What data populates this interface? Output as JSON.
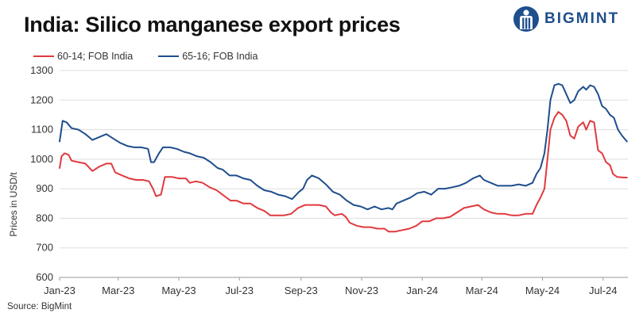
{
  "title": "India: Silico manganese export prices",
  "brand": {
    "name": "BIGMINT",
    "color": "#1f4e8c"
  },
  "source": "Source: BigMint",
  "chart_data": {
    "type": "line",
    "title": "India: Silico manganese export prices",
    "xlabel": "",
    "ylabel": "Prices in USD/t",
    "ylim": [
      600,
      1300
    ],
    "yticks": [
      600,
      700,
      800,
      900,
      1000,
      1100,
      1200,
      1300
    ],
    "xlim": [
      "2023-01-01",
      "2024-07-26"
    ],
    "x_tick_labels": [
      {
        "date": "2023-01-01",
        "label": "Jan-23"
      },
      {
        "date": "2023-03-01",
        "label": "Mar-23"
      },
      {
        "date": "2023-05-01",
        "label": "May-23"
      },
      {
        "date": "2023-07-01",
        "label": "Jul-23"
      },
      {
        "date": "2023-09-01",
        "label": "Sep-23"
      },
      {
        "date": "2023-11-01",
        "label": "Nov-23"
      },
      {
        "date": "2024-01-01",
        "label": "Jan-24"
      },
      {
        "date": "2024-03-01",
        "label": "Mar-24"
      },
      {
        "date": "2024-05-01",
        "label": "May-24"
      },
      {
        "date": "2024-07-01",
        "label": "Jul-24"
      }
    ],
    "grid": true,
    "legend_position": "top-left",
    "series": [
      {
        "name": "60-14; FOB India",
        "color": "#e03a3e",
        "points": [
          [
            "2023-01-01",
            970
          ],
          [
            "2023-01-03",
            1010
          ],
          [
            "2023-01-06",
            1020
          ],
          [
            "2023-01-10",
            1015
          ],
          [
            "2023-01-13",
            995
          ],
          [
            "2023-01-20",
            990
          ],
          [
            "2023-01-27",
            985
          ],
          [
            "2023-02-03",
            960
          ],
          [
            "2023-02-10",
            975
          ],
          [
            "2023-02-17",
            985
          ],
          [
            "2023-02-22",
            985
          ],
          [
            "2023-02-26",
            955
          ],
          [
            "2023-03-05",
            945
          ],
          [
            "2023-03-12",
            935
          ],
          [
            "2023-03-19",
            930
          ],
          [
            "2023-03-26",
            930
          ],
          [
            "2023-04-01",
            925
          ],
          [
            "2023-04-05",
            900
          ],
          [
            "2023-04-08",
            875
          ],
          [
            "2023-04-13",
            880
          ],
          [
            "2023-04-17",
            940
          ],
          [
            "2023-04-24",
            940
          ],
          [
            "2023-05-01",
            935
          ],
          [
            "2023-05-08",
            935
          ],
          [
            "2023-05-12",
            920
          ],
          [
            "2023-05-18",
            925
          ],
          [
            "2023-05-25",
            920
          ],
          [
            "2023-06-01",
            905
          ],
          [
            "2023-06-08",
            895
          ],
          [
            "2023-06-12",
            885
          ],
          [
            "2023-06-16",
            875
          ],
          [
            "2023-06-22",
            860
          ],
          [
            "2023-06-28",
            860
          ],
          [
            "2023-07-05",
            850
          ],
          [
            "2023-07-12",
            850
          ],
          [
            "2023-07-19",
            835
          ],
          [
            "2023-07-26",
            825
          ],
          [
            "2023-08-01",
            810
          ],
          [
            "2023-08-08",
            810
          ],
          [
            "2023-08-15",
            810
          ],
          [
            "2023-08-22",
            815
          ],
          [
            "2023-08-29",
            835
          ],
          [
            "2023-09-05",
            845
          ],
          [
            "2023-09-12",
            845
          ],
          [
            "2023-09-19",
            845
          ],
          [
            "2023-09-26",
            840
          ],
          [
            "2023-10-01",
            820
          ],
          [
            "2023-10-05",
            810
          ],
          [
            "2023-10-12",
            815
          ],
          [
            "2023-10-16",
            805
          ],
          [
            "2023-10-20",
            785
          ],
          [
            "2023-10-27",
            775
          ],
          [
            "2023-11-03",
            770
          ],
          [
            "2023-11-10",
            770
          ],
          [
            "2023-11-17",
            765
          ],
          [
            "2023-11-24",
            765
          ],
          [
            "2023-11-28",
            755
          ],
          [
            "2023-12-05",
            755
          ],
          [
            "2023-12-12",
            760
          ],
          [
            "2023-12-19",
            765
          ],
          [
            "2023-12-26",
            775
          ],
          [
            "2024-01-01",
            790
          ],
          [
            "2024-01-08",
            790
          ],
          [
            "2024-01-15",
            800
          ],
          [
            "2024-01-22",
            800
          ],
          [
            "2024-01-29",
            805
          ],
          [
            "2024-02-05",
            820
          ],
          [
            "2024-02-12",
            835
          ],
          [
            "2024-02-19",
            840
          ],
          [
            "2024-02-26",
            845
          ],
          [
            "2024-03-03",
            830
          ],
          [
            "2024-03-10",
            820
          ],
          [
            "2024-03-17",
            815
          ],
          [
            "2024-03-24",
            815
          ],
          [
            "2024-03-31",
            810
          ],
          [
            "2024-04-07",
            810
          ],
          [
            "2024-04-14",
            815
          ],
          [
            "2024-04-21",
            815
          ],
          [
            "2024-04-25",
            845
          ],
          [
            "2024-04-29",
            870
          ],
          [
            "2024-05-03",
            900
          ],
          [
            "2024-05-06",
            1000
          ],
          [
            "2024-05-09",
            1100
          ],
          [
            "2024-05-13",
            1140
          ],
          [
            "2024-05-17",
            1160
          ],
          [
            "2024-05-21",
            1150
          ],
          [
            "2024-05-25",
            1130
          ],
          [
            "2024-05-29",
            1080
          ],
          [
            "2024-06-02",
            1070
          ],
          [
            "2024-06-06",
            1110
          ],
          [
            "2024-06-11",
            1125
          ],
          [
            "2024-06-14",
            1100
          ],
          [
            "2024-06-18",
            1130
          ],
          [
            "2024-06-22",
            1125
          ],
          [
            "2024-06-26",
            1030
          ],
          [
            "2024-06-30",
            1020
          ],
          [
            "2024-07-04",
            990
          ],
          [
            "2024-07-08",
            980
          ],
          [
            "2024-07-11",
            950
          ],
          [
            "2024-07-15",
            940
          ],
          [
            "2024-07-22",
            938
          ],
          [
            "2024-07-25",
            938
          ]
        ]
      },
      {
        "name": "65-16; FOB India",
        "color": "#1f4e8c",
        "points": [
          [
            "2023-01-01",
            1060
          ],
          [
            "2023-01-04",
            1130
          ],
          [
            "2023-01-08",
            1125
          ],
          [
            "2023-01-13",
            1105
          ],
          [
            "2023-01-20",
            1100
          ],
          [
            "2023-01-27",
            1085
          ],
          [
            "2023-02-03",
            1065
          ],
          [
            "2023-02-10",
            1075
          ],
          [
            "2023-02-17",
            1085
          ],
          [
            "2023-02-24",
            1070
          ],
          [
            "2023-03-03",
            1055
          ],
          [
            "2023-03-10",
            1045
          ],
          [
            "2023-03-17",
            1040
          ],
          [
            "2023-03-24",
            1040
          ],
          [
            "2023-03-31",
            1035
          ],
          [
            "2023-04-03",
            990
          ],
          [
            "2023-04-06",
            990
          ],
          [
            "2023-04-11",
            1020
          ],
          [
            "2023-04-15",
            1040
          ],
          [
            "2023-04-22",
            1040
          ],
          [
            "2023-04-29",
            1035
          ],
          [
            "2023-05-06",
            1025
          ],
          [
            "2023-05-12",
            1020
          ],
          [
            "2023-05-19",
            1010
          ],
          [
            "2023-05-26",
            1005
          ],
          [
            "2023-06-02",
            990
          ],
          [
            "2023-06-09",
            970
          ],
          [
            "2023-06-14",
            965
          ],
          [
            "2023-06-21",
            945
          ],
          [
            "2023-06-28",
            945
          ],
          [
            "2023-07-05",
            935
          ],
          [
            "2023-07-12",
            930
          ],
          [
            "2023-07-19",
            910
          ],
          [
            "2023-07-26",
            895
          ],
          [
            "2023-08-02",
            890
          ],
          [
            "2023-08-09",
            880
          ],
          [
            "2023-08-16",
            875
          ],
          [
            "2023-08-23",
            865
          ],
          [
            "2023-08-30",
            890
          ],
          [
            "2023-09-03",
            900
          ],
          [
            "2023-09-07",
            930
          ],
          [
            "2023-09-12",
            945
          ],
          [
            "2023-09-19",
            935
          ],
          [
            "2023-09-26",
            915
          ],
          [
            "2023-10-03",
            890
          ],
          [
            "2023-10-10",
            880
          ],
          [
            "2023-10-17",
            860
          ],
          [
            "2023-10-24",
            845
          ],
          [
            "2023-10-31",
            840
          ],
          [
            "2023-11-07",
            830
          ],
          [
            "2023-11-14",
            840
          ],
          [
            "2023-11-21",
            830
          ],
          [
            "2023-11-28",
            835
          ],
          [
            "2023-12-02",
            830
          ],
          [
            "2023-12-06",
            850
          ],
          [
            "2023-12-13",
            860
          ],
          [
            "2023-12-20",
            870
          ],
          [
            "2023-12-27",
            885
          ],
          [
            "2024-01-03",
            890
          ],
          [
            "2024-01-10",
            880
          ],
          [
            "2024-01-17",
            900
          ],
          [
            "2024-01-24",
            900
          ],
          [
            "2024-01-31",
            905
          ],
          [
            "2024-02-07",
            910
          ],
          [
            "2024-02-14",
            920
          ],
          [
            "2024-02-21",
            935
          ],
          [
            "2024-02-28",
            945
          ],
          [
            "2024-03-03",
            930
          ],
          [
            "2024-03-10",
            920
          ],
          [
            "2024-03-17",
            910
          ],
          [
            "2024-03-24",
            910
          ],
          [
            "2024-03-31",
            910
          ],
          [
            "2024-04-07",
            915
          ],
          [
            "2024-04-14",
            910
          ],
          [
            "2024-04-21",
            920
          ],
          [
            "2024-04-25",
            950
          ],
          [
            "2024-04-29",
            970
          ],
          [
            "2024-05-03",
            1020
          ],
          [
            "2024-05-06",
            1100
          ],
          [
            "2024-05-09",
            1200
          ],
          [
            "2024-05-13",
            1250
          ],
          [
            "2024-05-17",
            1255
          ],
          [
            "2024-05-21",
            1250
          ],
          [
            "2024-05-25",
            1220
          ],
          [
            "2024-05-29",
            1190
          ],
          [
            "2024-06-02",
            1200
          ],
          [
            "2024-06-06",
            1230
          ],
          [
            "2024-06-11",
            1245
          ],
          [
            "2024-06-14",
            1235
          ],
          [
            "2024-06-18",
            1250
          ],
          [
            "2024-06-22",
            1245
          ],
          [
            "2024-06-26",
            1220
          ],
          [
            "2024-06-30",
            1180
          ],
          [
            "2024-07-04",
            1170
          ],
          [
            "2024-07-08",
            1150
          ],
          [
            "2024-07-12",
            1140
          ],
          [
            "2024-07-16",
            1100
          ],
          [
            "2024-07-20",
            1080
          ],
          [
            "2024-07-25",
            1060
          ]
        ]
      }
    ]
  }
}
